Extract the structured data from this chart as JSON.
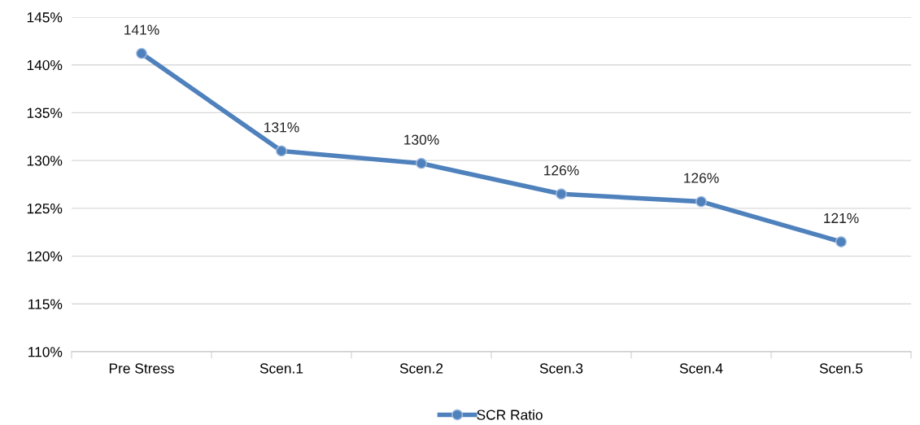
{
  "chart_data": {
    "type": "line",
    "categories": [
      "Pre Stress",
      "Scen.1",
      "Scen.2",
      "Scen.3",
      "Scen.4",
      "Scen.5"
    ],
    "series": [
      {
        "name": "SCR Ratio",
        "color": "#4f81bd",
        "values": [
          141.2,
          131.0,
          129.7,
          126.5,
          125.7,
          121.5
        ],
        "value_labels": [
          "141%",
          "131%",
          "130%",
          "126%",
          "126%",
          "121%"
        ]
      }
    ],
    "ylim": [
      110,
      145
    ],
    "yticks": [
      {
        "value": 110,
        "label": "110%"
      },
      {
        "value": 115,
        "label": "115%"
      },
      {
        "value": 120,
        "label": "120%"
      },
      {
        "value": 125,
        "label": "125%"
      },
      {
        "value": 130,
        "label": "130%"
      },
      {
        "value": 135,
        "label": "135%"
      },
      {
        "value": 140,
        "label": "140%"
      },
      {
        "value": 145,
        "label": "145%"
      }
    ],
    "grid": "y",
    "legend": "bottom",
    "marker": "circle",
    "line_style": "solid"
  }
}
